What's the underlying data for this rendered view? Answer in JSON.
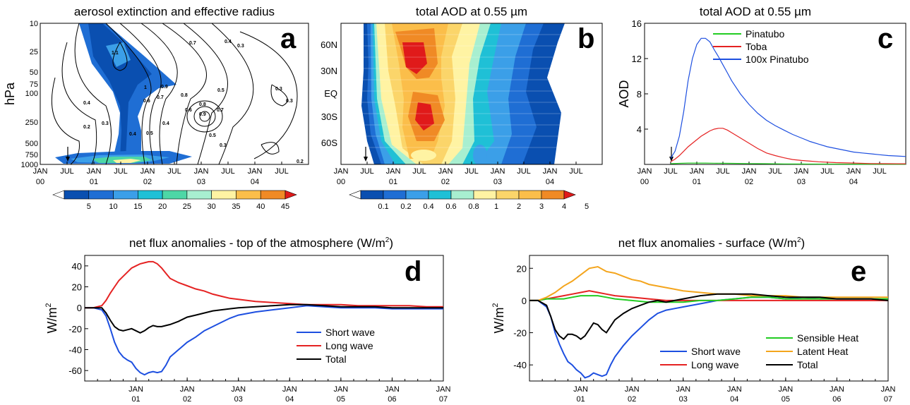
{
  "chart_data": [
    {
      "id": "a",
      "type": "heatmap",
      "letter": "a",
      "title": "aerosol extinction and effective radius",
      "ylabel": "hPa",
      "xlabel": "",
      "y_scale": "log",
      "y_ticks": [
        "10",
        "25",
        "50",
        "75",
        "100",
        "250",
        "500",
        "750",
        "1000"
      ],
      "x_ticks": [
        [
          "JAN",
          "00"
        ],
        [
          "JUL",
          ""
        ],
        [
          "JAN",
          "01"
        ],
        [
          "JUL",
          ""
        ],
        [
          "JAN",
          "02"
        ],
        [
          "JUL",
          ""
        ],
        [
          "JAN",
          "03"
        ],
        [
          "JUL",
          ""
        ],
        [
          "JAN",
          "04"
        ],
        [
          "JUL",
          ""
        ]
      ],
      "contour_labels": [
        "0.2",
        "0.3",
        "0.4",
        "0.5",
        "0.6",
        "0.7",
        "0.8",
        "0.9",
        "1",
        "1.1"
      ],
      "colorbar": {
        "labels": [
          "5",
          "10",
          "15",
          "20",
          "25",
          "30",
          "35",
          "40",
          "45"
        ],
        "colors": [
          "#ffffff",
          "#0a4fb0",
          "#1f6ed4",
          "#3b9fe8",
          "#1fc0d6",
          "#4dd7a6",
          "#a8efd0",
          "#fff3a3",
          "#fbbe4a",
          "#f08a25",
          "#e01a1a"
        ]
      },
      "eruption_marker": "arrow at mid-1900s (JUL 00)"
    },
    {
      "id": "b",
      "type": "heatmap",
      "letter": "b",
      "title": "total AOD at 0.55 µm",
      "y_ticks": [
        "60N",
        "30N",
        "EQ",
        "30S",
        "60S"
      ],
      "x_ticks": [
        [
          "JAN",
          "00"
        ],
        [
          "JUL",
          ""
        ],
        [
          "JAN",
          "01"
        ],
        [
          "JUL",
          ""
        ],
        [
          "JAN",
          "02"
        ],
        [
          "JUL",
          ""
        ],
        [
          "JAN",
          "03"
        ],
        [
          "JUL",
          ""
        ],
        [
          "JAN",
          "04"
        ],
        [
          "JUL",
          ""
        ]
      ],
      "colorbar": {
        "labels": [
          "0.1",
          "0.2",
          "0.4",
          "0.6",
          "0.8",
          "1",
          "2",
          "3",
          "4",
          "5"
        ],
        "colors": [
          "#ffffff",
          "#0a4fb0",
          "#1f6ed4",
          "#3b9fe8",
          "#1fc0d6",
          "#a8efd0",
          "#fff3a3",
          "#fbd56a",
          "#fbbe4a",
          "#f08a25",
          "#e01a1a"
        ]
      }
    },
    {
      "id": "c",
      "type": "line",
      "letter": "c",
      "title": "total AOD at 0.55 µm",
      "ylabel": "AOD",
      "ylim": [
        0,
        16
      ],
      "y_ticks": [
        4,
        8,
        12,
        16
      ],
      "x_ticks": [
        [
          "JAN",
          "00"
        ],
        [
          "JUL",
          ""
        ],
        [
          "JAN",
          "01"
        ],
        [
          "JUL",
          ""
        ],
        [
          "JAN",
          "02"
        ],
        [
          "JUL",
          ""
        ],
        [
          "JAN",
          "03"
        ],
        [
          "JUL",
          ""
        ],
        [
          "JAN",
          "04"
        ],
        [
          "JUL",
          ""
        ]
      ],
      "x_domain": [
        0,
        60
      ],
      "series": [
        {
          "name": "Pinatubo",
          "color": "#22cc22",
          "x": [
            6,
            8,
            10,
            12,
            14,
            16,
            18,
            20,
            24,
            28,
            32,
            36,
            40,
            48,
            56,
            60
          ],
          "y": [
            0.08,
            0.12,
            0.15,
            0.15,
            0.15,
            0.14,
            0.13,
            0.12,
            0.1,
            0.08,
            0.06,
            0.05,
            0.04,
            0.03,
            0.02,
            0.02
          ]
        },
        {
          "name": "Toba",
          "color": "#e52222",
          "x": [
            6,
            7,
            8,
            9,
            10,
            11,
            12,
            13,
            14,
            15,
            16,
            17,
            18,
            19,
            20,
            22,
            24,
            26,
            28,
            30,
            32,
            34,
            36,
            40,
            44,
            48,
            52,
            56,
            60
          ],
          "y": [
            0.3,
            0.6,
            1.0,
            1.5,
            2.0,
            2.4,
            2.8,
            3.2,
            3.5,
            3.8,
            4.0,
            4.1,
            4.1,
            3.9,
            3.6,
            3.0,
            2.4,
            1.8,
            1.3,
            1.0,
            0.75,
            0.55,
            0.45,
            0.3,
            0.2,
            0.15,
            0.1,
            0.08,
            0.07
          ]
        },
        {
          "name": "100x Pinatubo",
          "color": "#1d4fe0",
          "x": [
            6,
            7,
            8,
            9,
            10,
            11,
            12,
            13,
            14,
            15,
            16,
            17,
            18,
            19,
            20,
            22,
            24,
            26,
            28,
            30,
            32,
            34,
            36,
            38,
            40,
            42,
            44,
            46,
            48,
            50,
            52,
            54,
            56,
            58,
            60
          ],
          "y": [
            0.7,
            1.5,
            3.2,
            6.0,
            9.5,
            12.0,
            13.6,
            14.3,
            14.3,
            13.9,
            13.0,
            12.2,
            11.3,
            10.4,
            9.5,
            8.0,
            6.8,
            5.8,
            5.0,
            4.4,
            3.9,
            3.4,
            3.0,
            2.6,
            2.3,
            2.0,
            1.8,
            1.6,
            1.4,
            1.3,
            1.2,
            1.1,
            1.0,
            0.95,
            0.9
          ]
        }
      ]
    },
    {
      "id": "d",
      "type": "line",
      "letter": "d",
      "title_parts": [
        "net flux anomalies - top of the atmosphere (W/m",
        "2",
        ")"
      ],
      "ylabel_parts": [
        "W/m",
        "2"
      ],
      "ylim": [
        -70,
        50
      ],
      "y_ticks": [
        -60,
        -40,
        -20,
        0,
        20,
        40
      ],
      "x_ticks": [
        [
          "JAN",
          "01"
        ],
        [
          "JAN",
          "02"
        ],
        [
          "JAN",
          "03"
        ],
        [
          "JAN",
          "04"
        ],
        [
          "JAN",
          "05"
        ],
        [
          "JAN",
          "06"
        ],
        [
          "JAN",
          "07"
        ]
      ],
      "x_domain": [
        0,
        84
      ],
      "series": [
        {
          "name": "Short wave",
          "color": "#1d4fe0",
          "x": [
            0,
            2,
            4,
            5,
            6,
            7,
            8,
            9,
            10,
            11,
            12,
            13,
            14,
            15,
            16,
            17,
            18,
            19,
            20,
            22,
            24,
            26,
            28,
            30,
            32,
            34,
            36,
            40,
            44,
            48,
            52,
            56,
            60,
            64,
            68,
            72,
            76,
            80,
            84
          ],
          "y": [
            0,
            0,
            -2,
            -8,
            -20,
            -33,
            -42,
            -47,
            -50,
            -52,
            -58,
            -62,
            -64,
            -62,
            -61,
            -62,
            -61,
            -55,
            -47,
            -40,
            -33,
            -28,
            -22,
            -18,
            -14,
            -10,
            -7,
            -4,
            -2,
            0,
            2,
            1,
            0,
            0,
            0,
            -1,
            -1,
            -1,
            -1
          ]
        },
        {
          "name": "Long wave",
          "color": "#e52222",
          "x": [
            0,
            2,
            4,
            5,
            6,
            7,
            8,
            9,
            10,
            11,
            12,
            13,
            14,
            15,
            16,
            17,
            18,
            19,
            20,
            22,
            24,
            26,
            28,
            30,
            32,
            34,
            36,
            40,
            44,
            48,
            52,
            56,
            60,
            64,
            68,
            72,
            76,
            80,
            84
          ],
          "y": [
            0,
            0,
            2,
            7,
            14,
            20,
            26,
            30,
            34,
            38,
            40,
            42,
            43,
            44,
            44,
            42,
            38,
            33,
            28,
            24,
            21,
            18,
            16,
            13,
            11,
            9,
            8,
            6,
            5,
            4,
            3,
            3,
            3,
            2,
            2,
            2,
            2,
            1,
            1
          ]
        },
        {
          "name": "Total",
          "color": "#000000",
          "x": [
            0,
            2,
            4,
            5,
            6,
            7,
            8,
            9,
            10,
            11,
            12,
            13,
            14,
            15,
            16,
            17,
            18,
            19,
            20,
            22,
            24,
            26,
            28,
            30,
            32,
            34,
            36,
            40,
            44,
            48,
            52,
            56,
            60,
            64,
            68,
            72,
            76,
            80,
            84
          ],
          "y": [
            0,
            0,
            0,
            -5,
            -12,
            -18,
            -21,
            -22,
            -21,
            -20,
            -22,
            -24,
            -22,
            -19,
            -17,
            -18,
            -18,
            -17,
            -16,
            -13,
            -9,
            -7,
            -5,
            -3,
            -2,
            -1,
            0,
            1,
            2,
            3,
            3,
            2,
            1,
            1,
            1,
            0,
            0,
            0,
            0
          ]
        }
      ]
    },
    {
      "id": "e",
      "type": "line",
      "letter": "e",
      "title_parts": [
        "net flux anomalies - surface (W/m",
        "2",
        ")"
      ],
      "ylabel_parts": [
        "W/m",
        "2"
      ],
      "ylim": [
        -50,
        28
      ],
      "y_ticks": [
        -40,
        -20,
        0,
        20
      ],
      "x_ticks": [
        [
          "JAN",
          "01"
        ],
        [
          "JAN",
          "02"
        ],
        [
          "JAN",
          "03"
        ],
        [
          "JAN",
          "04"
        ],
        [
          "JAN",
          "05"
        ],
        [
          "JAN",
          "06"
        ],
        [
          "JAN",
          "07"
        ]
      ],
      "x_domain": [
        0,
        84
      ],
      "series": [
        {
          "name": "Short wave",
          "color": "#1d4fe0",
          "x": [
            0,
            2,
            4,
            5,
            6,
            7,
            8,
            9,
            10,
            11,
            12,
            13,
            14,
            15,
            16,
            17,
            18,
            19,
            20,
            22,
            24,
            26,
            28,
            30,
            32,
            34,
            36,
            40,
            44,
            48,
            52,
            56,
            60,
            64,
            68,
            72,
            76,
            80,
            84
          ],
          "y": [
            0,
            0,
            -4,
            -10,
            -20,
            -27,
            -33,
            -38,
            -40,
            -43,
            -45,
            -48,
            -47,
            -45,
            -46,
            -47,
            -46,
            -40,
            -35,
            -28,
            -22,
            -17,
            -12,
            -8,
            -6,
            -5,
            -4,
            -2,
            0,
            1,
            2,
            2,
            1,
            2,
            1,
            1,
            1,
            1,
            0
          ]
        },
        {
          "name": "Long wave",
          "color": "#e52222",
          "x": [
            0,
            2,
            4,
            6,
            8,
            10,
            12,
            14,
            16,
            18,
            20,
            24,
            28,
            32,
            36,
            40,
            44,
            48,
            52,
            56,
            60,
            64,
            68,
            72,
            76,
            80,
            84
          ],
          "y": [
            0,
            0,
            1,
            2,
            3,
            4,
            5,
            6,
            5,
            4,
            3,
            2,
            1,
            0,
            0,
            0,
            0,
            0,
            0,
            0,
            0,
            0,
            0,
            0,
            0,
            0,
            0
          ]
        },
        {
          "name": "Sensible Heat",
          "color": "#22cc22",
          "x": [
            0,
            2,
            4,
            6,
            8,
            10,
            12,
            14,
            16,
            18,
            20,
            24,
            28,
            32,
            36,
            40,
            44,
            48,
            52,
            56,
            60,
            64,
            68,
            72,
            76,
            80,
            84
          ],
          "y": [
            0,
            0,
            1,
            1,
            1,
            2,
            3,
            3,
            3,
            2,
            1,
            0,
            -1,
            -1,
            -1,
            0,
            0,
            1,
            2,
            2,
            1,
            1,
            1,
            1,
            1,
            1,
            1
          ]
        },
        {
          "name": "Latent Heat",
          "color": "#f4a51d",
          "x": [
            0,
            2,
            4,
            6,
            8,
            10,
            12,
            14,
            16,
            18,
            20,
            22,
            24,
            26,
            28,
            30,
            32,
            34,
            36,
            40,
            44,
            48,
            52,
            56,
            60,
            64,
            68,
            72,
            76,
            80,
            84
          ],
          "y": [
            0,
            0,
            2,
            5,
            9,
            12,
            16,
            20,
            21,
            18,
            17,
            15,
            13,
            12,
            10,
            9,
            8,
            7,
            6,
            5,
            4,
            4,
            3,
            3,
            3,
            2,
            2,
            2,
            2,
            2,
            2
          ]
        },
        {
          "name": "Total",
          "color": "#000000",
          "x": [
            0,
            2,
            4,
            5,
            6,
            7,
            8,
            9,
            10,
            11,
            12,
            13,
            14,
            15,
            16,
            17,
            18,
            19,
            20,
            22,
            24,
            26,
            28,
            30,
            32,
            34,
            36,
            40,
            44,
            48,
            52,
            56,
            60,
            64,
            68,
            72,
            76,
            80,
            84
          ],
          "y": [
            0,
            0,
            -3,
            -10,
            -18,
            -22,
            -24,
            -21,
            -21,
            -22,
            -24,
            -22,
            -18,
            -14,
            -15,
            -18,
            -20,
            -16,
            -12,
            -8,
            -5,
            -3,
            -1,
            0,
            -1,
            0,
            1,
            3,
            4,
            4,
            4,
            3,
            2,
            2,
            2,
            1,
            1,
            1,
            0
          ]
        }
      ]
    }
  ]
}
